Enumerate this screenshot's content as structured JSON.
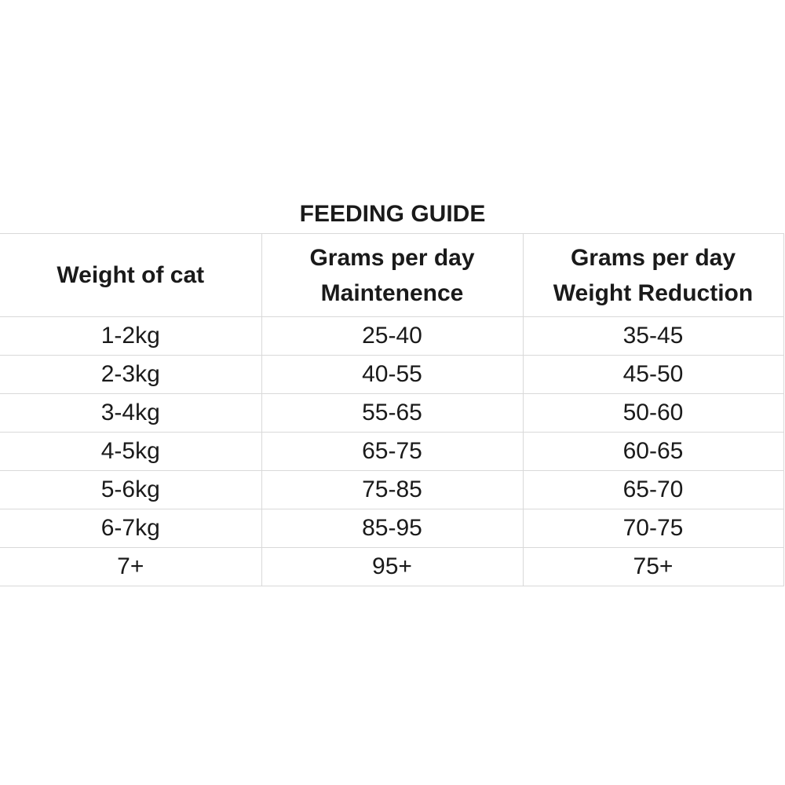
{
  "title": "FEEDING GUIDE",
  "colors": {
    "background": "#ffffff",
    "text": "#1a1a1a",
    "border": "#d9d9d9"
  },
  "chart_data": {
    "type": "table",
    "title": "FEEDING GUIDE",
    "columns": [
      {
        "line1": "Weight of cat",
        "line2": ""
      },
      {
        "line1": "Grams per day",
        "line2": "Maintenence"
      },
      {
        "line1": "Grams per day",
        "line2": "Weight Reduction"
      }
    ],
    "rows": [
      {
        "weight": "1-2kg",
        "maintenance": "25-40",
        "weight_reduction": "35-45"
      },
      {
        "weight": "2-3kg",
        "maintenance": "40-55",
        "weight_reduction": "45-50"
      },
      {
        "weight": "3-4kg",
        "maintenance": "55-65",
        "weight_reduction": "50-60"
      },
      {
        "weight": "4-5kg",
        "maintenance": "65-75",
        "weight_reduction": "60-65"
      },
      {
        "weight": "5-6kg",
        "maintenance": "75-85",
        "weight_reduction": "65-70"
      },
      {
        "weight": "6-7kg",
        "maintenance": "85-95",
        "weight_reduction": "70-75"
      },
      {
        "weight": "7+",
        "maintenance": "95+",
        "weight_reduction": "75+"
      }
    ]
  }
}
